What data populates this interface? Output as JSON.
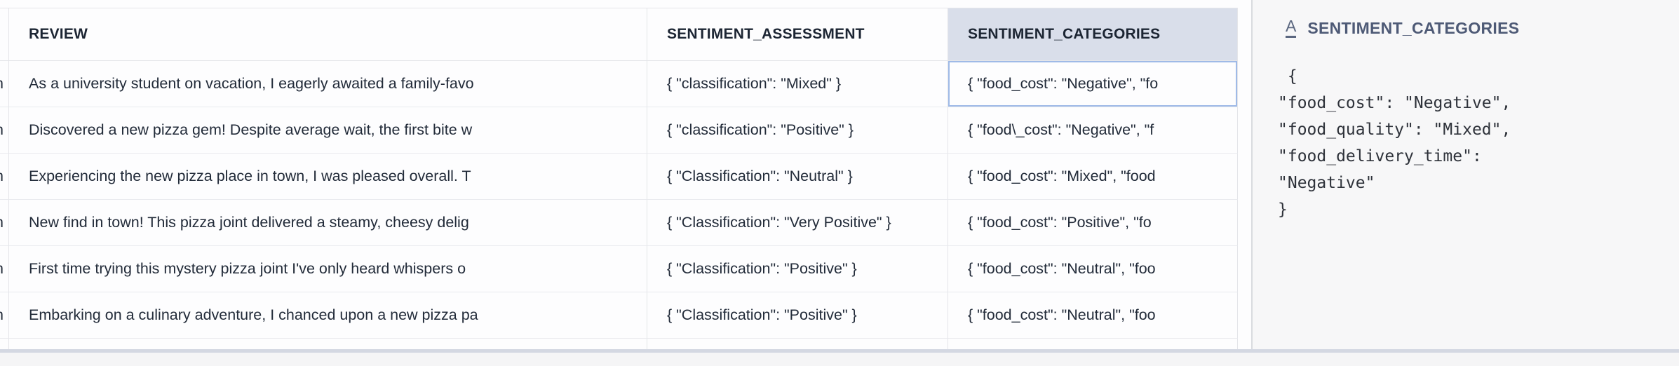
{
  "table": {
    "clipped_left_fragment": "n",
    "columns": {
      "review": {
        "label": "REVIEW"
      },
      "sentiment_assessment": {
        "label": "SENTIMENT_ASSESSMENT"
      },
      "sentiment_categories": {
        "label": "SENTIMENT_CATEGORIES",
        "selected": true
      }
    },
    "rows": [
      {
        "review": "As a university student on vacation, I eagerly awaited a family-favo",
        "sentiment_assessment": "{ \"classification\": \"Mixed\" }",
        "sentiment_categories": "{ \"food_cost\": \"Negative\", \"fo"
      },
      {
        "review": "Discovered a new pizza gem! Despite average wait, the first bite w",
        "sentiment_assessment": "{ \"classification\": \"Positive\" }",
        "sentiment_categories": "{ \"food\\_cost\": \"Negative\", \"f"
      },
      {
        "review": "Experiencing the new pizza place in town, I was pleased overall. T",
        "sentiment_assessment": "{ \"Classification\": \"Neutral\" }",
        "sentiment_categories": "{ \"food_cost\": \"Mixed\", \"food"
      },
      {
        "review": "New find in town! This pizza joint delivered a steamy, cheesy delig",
        "sentiment_assessment": "{ \"Classification\": \"Very Positive\" }",
        "sentiment_categories": "{ \"food_cost\": \"Positive\", \"fo"
      },
      {
        "review": "First time trying this mystery pizza joint I've only heard whispers o",
        "sentiment_assessment": "{   \"Classification\": \"Positive\" }",
        "sentiment_categories": "{ \"food_cost\": \"Neutral\", \"foo"
      },
      {
        "review": "Embarking on a culinary adventure, I chanced upon a new pizza pa",
        "sentiment_assessment": "{ \"Classification\": \"Positive\" }",
        "sentiment_categories": "{ \"food_cost\": \"Neutral\", \"foo"
      }
    ]
  },
  "side_panel": {
    "type_icon": "A",
    "title": "SENTIMENT_CATEGORIES",
    "value_lines": [
      " {",
      "\"food_cost\": \"Negative\",",
      "\"food_quality\": \"Mixed\",",
      "\"food_delivery_time\":",
      "\"Negative\"",
      "}"
    ]
  },
  "colors": {
    "selected_header_bg": "#d9deea",
    "selected_cell_border": "#9fbae7",
    "grid_border": "#e4e5e9",
    "panel_bg": "#f7f7f8",
    "bottom_strip": "#d4d8e2",
    "header_text": "#1c2533",
    "cell_text": "#222b39",
    "panel_title_text": "#4e5a76"
  }
}
